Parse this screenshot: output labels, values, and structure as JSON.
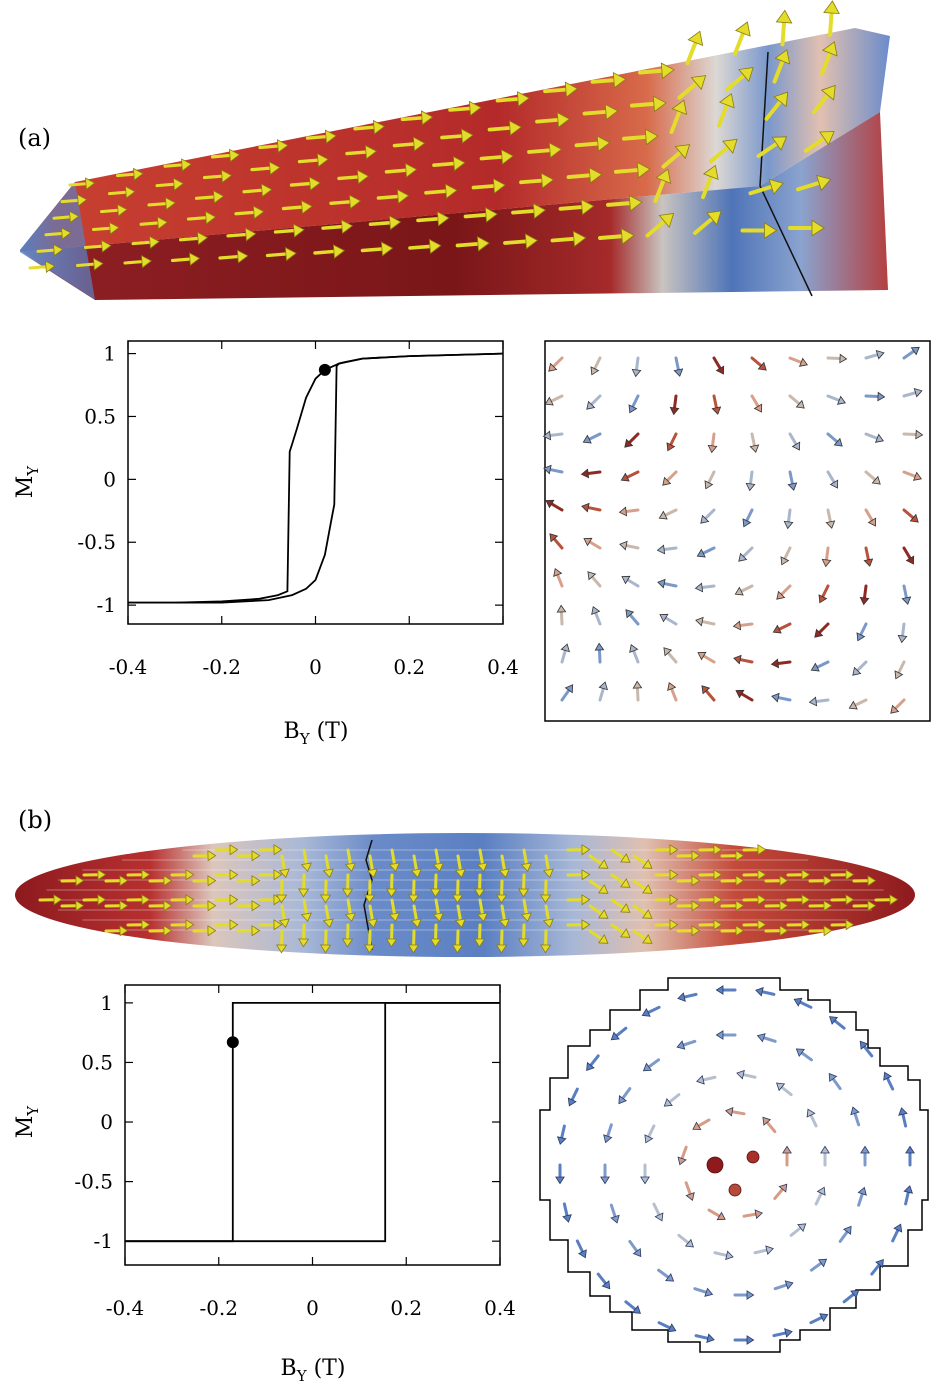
{
  "panels": [
    {
      "id": "a",
      "label": "(a)"
    },
    {
      "id": "b",
      "label": "(b)"
    }
  ],
  "colors": {
    "arrow_yellow": "#e6df2e",
    "surface_red": "#b0242a",
    "surface_blue": "#5b7fc0",
    "surface_white": "#d9d4d0"
  },
  "chart_data": [
    {
      "panel": "a",
      "type": "line",
      "xlabel_main": "B",
      "xlabel_sub": "Y",
      "xlabel_unit": " (T)",
      "ylabel_main": "M",
      "ylabel_sub": "Y",
      "xlim": [
        -0.4,
        0.4
      ],
      "ylim": [
        -1.15,
        1.1
      ],
      "xticks": [
        "-0.4",
        "-0.2",
        "0",
        "0.2",
        "0.4"
      ],
      "xtick_values": [
        -0.4,
        -0.2,
        0,
        0.2,
        0.4
      ],
      "yticks": [
        "1",
        "0.5",
        "0",
        "-0.5",
        "-1"
      ],
      "ytick_values": [
        1,
        0.5,
        0,
        -0.5,
        -1
      ],
      "series": [
        {
          "x": [
            -0.4,
            -0.3,
            -0.2,
            -0.12,
            -0.08,
            -0.06,
            -0.055,
            -0.05,
            -0.04,
            -0.02,
            0,
            0.02,
            0.05,
            0.1,
            0.2,
            0.4
          ],
          "y": [
            -0.98,
            -0.98,
            -0.97,
            -0.95,
            -0.92,
            -0.89,
            0.22,
            0.28,
            0.4,
            0.65,
            0.8,
            0.87,
            0.92,
            0.96,
            0.98,
            1.0
          ]
        },
        {
          "x": [
            0.4,
            0.2,
            0.1,
            0.06,
            0.05,
            0.045,
            0.04,
            0.035,
            0.02,
            0,
            -0.02,
            -0.05,
            -0.1,
            -0.2,
            -0.4
          ],
          "y": [
            1.0,
            0.98,
            0.96,
            0.93,
            0.92,
            0.9,
            -0.2,
            -0.3,
            -0.6,
            -0.8,
            -0.87,
            -0.92,
            -0.96,
            -0.98,
            -0.98
          ]
        }
      ],
      "marker": {
        "x": 0.02,
        "y": 0.87
      }
    },
    {
      "panel": "b",
      "type": "line",
      "xlabel_main": "B",
      "xlabel_sub": "Y",
      "xlabel_unit": " (T)",
      "ylabel_main": "M",
      "ylabel_sub": "Y",
      "xlim": [
        -0.4,
        0.4
      ],
      "ylim": [
        -1.2,
        1.15
      ],
      "xticks": [
        "-0.4",
        "-0.2",
        "0",
        "0.2",
        "0.4"
      ],
      "xtick_values": [
        -0.4,
        -0.2,
        0,
        0.2,
        0.4
      ],
      "yticks": [
        "1",
        "0.5",
        "0",
        "-0.5",
        "-1"
      ],
      "ytick_values": [
        1,
        0.5,
        0,
        -0.5,
        -1
      ],
      "series": [
        {
          "x": [
            -0.4,
            -0.17,
            -0.17,
            0.4
          ],
          "y": [
            -1,
            -1,
            1,
            1
          ]
        },
        {
          "x": [
            0.4,
            0.155,
            0.155,
            -0.4
          ],
          "y": [
            1,
            1,
            -1,
            -1
          ]
        }
      ],
      "marker": {
        "x": -0.17,
        "y": 0.67
      }
    }
  ]
}
